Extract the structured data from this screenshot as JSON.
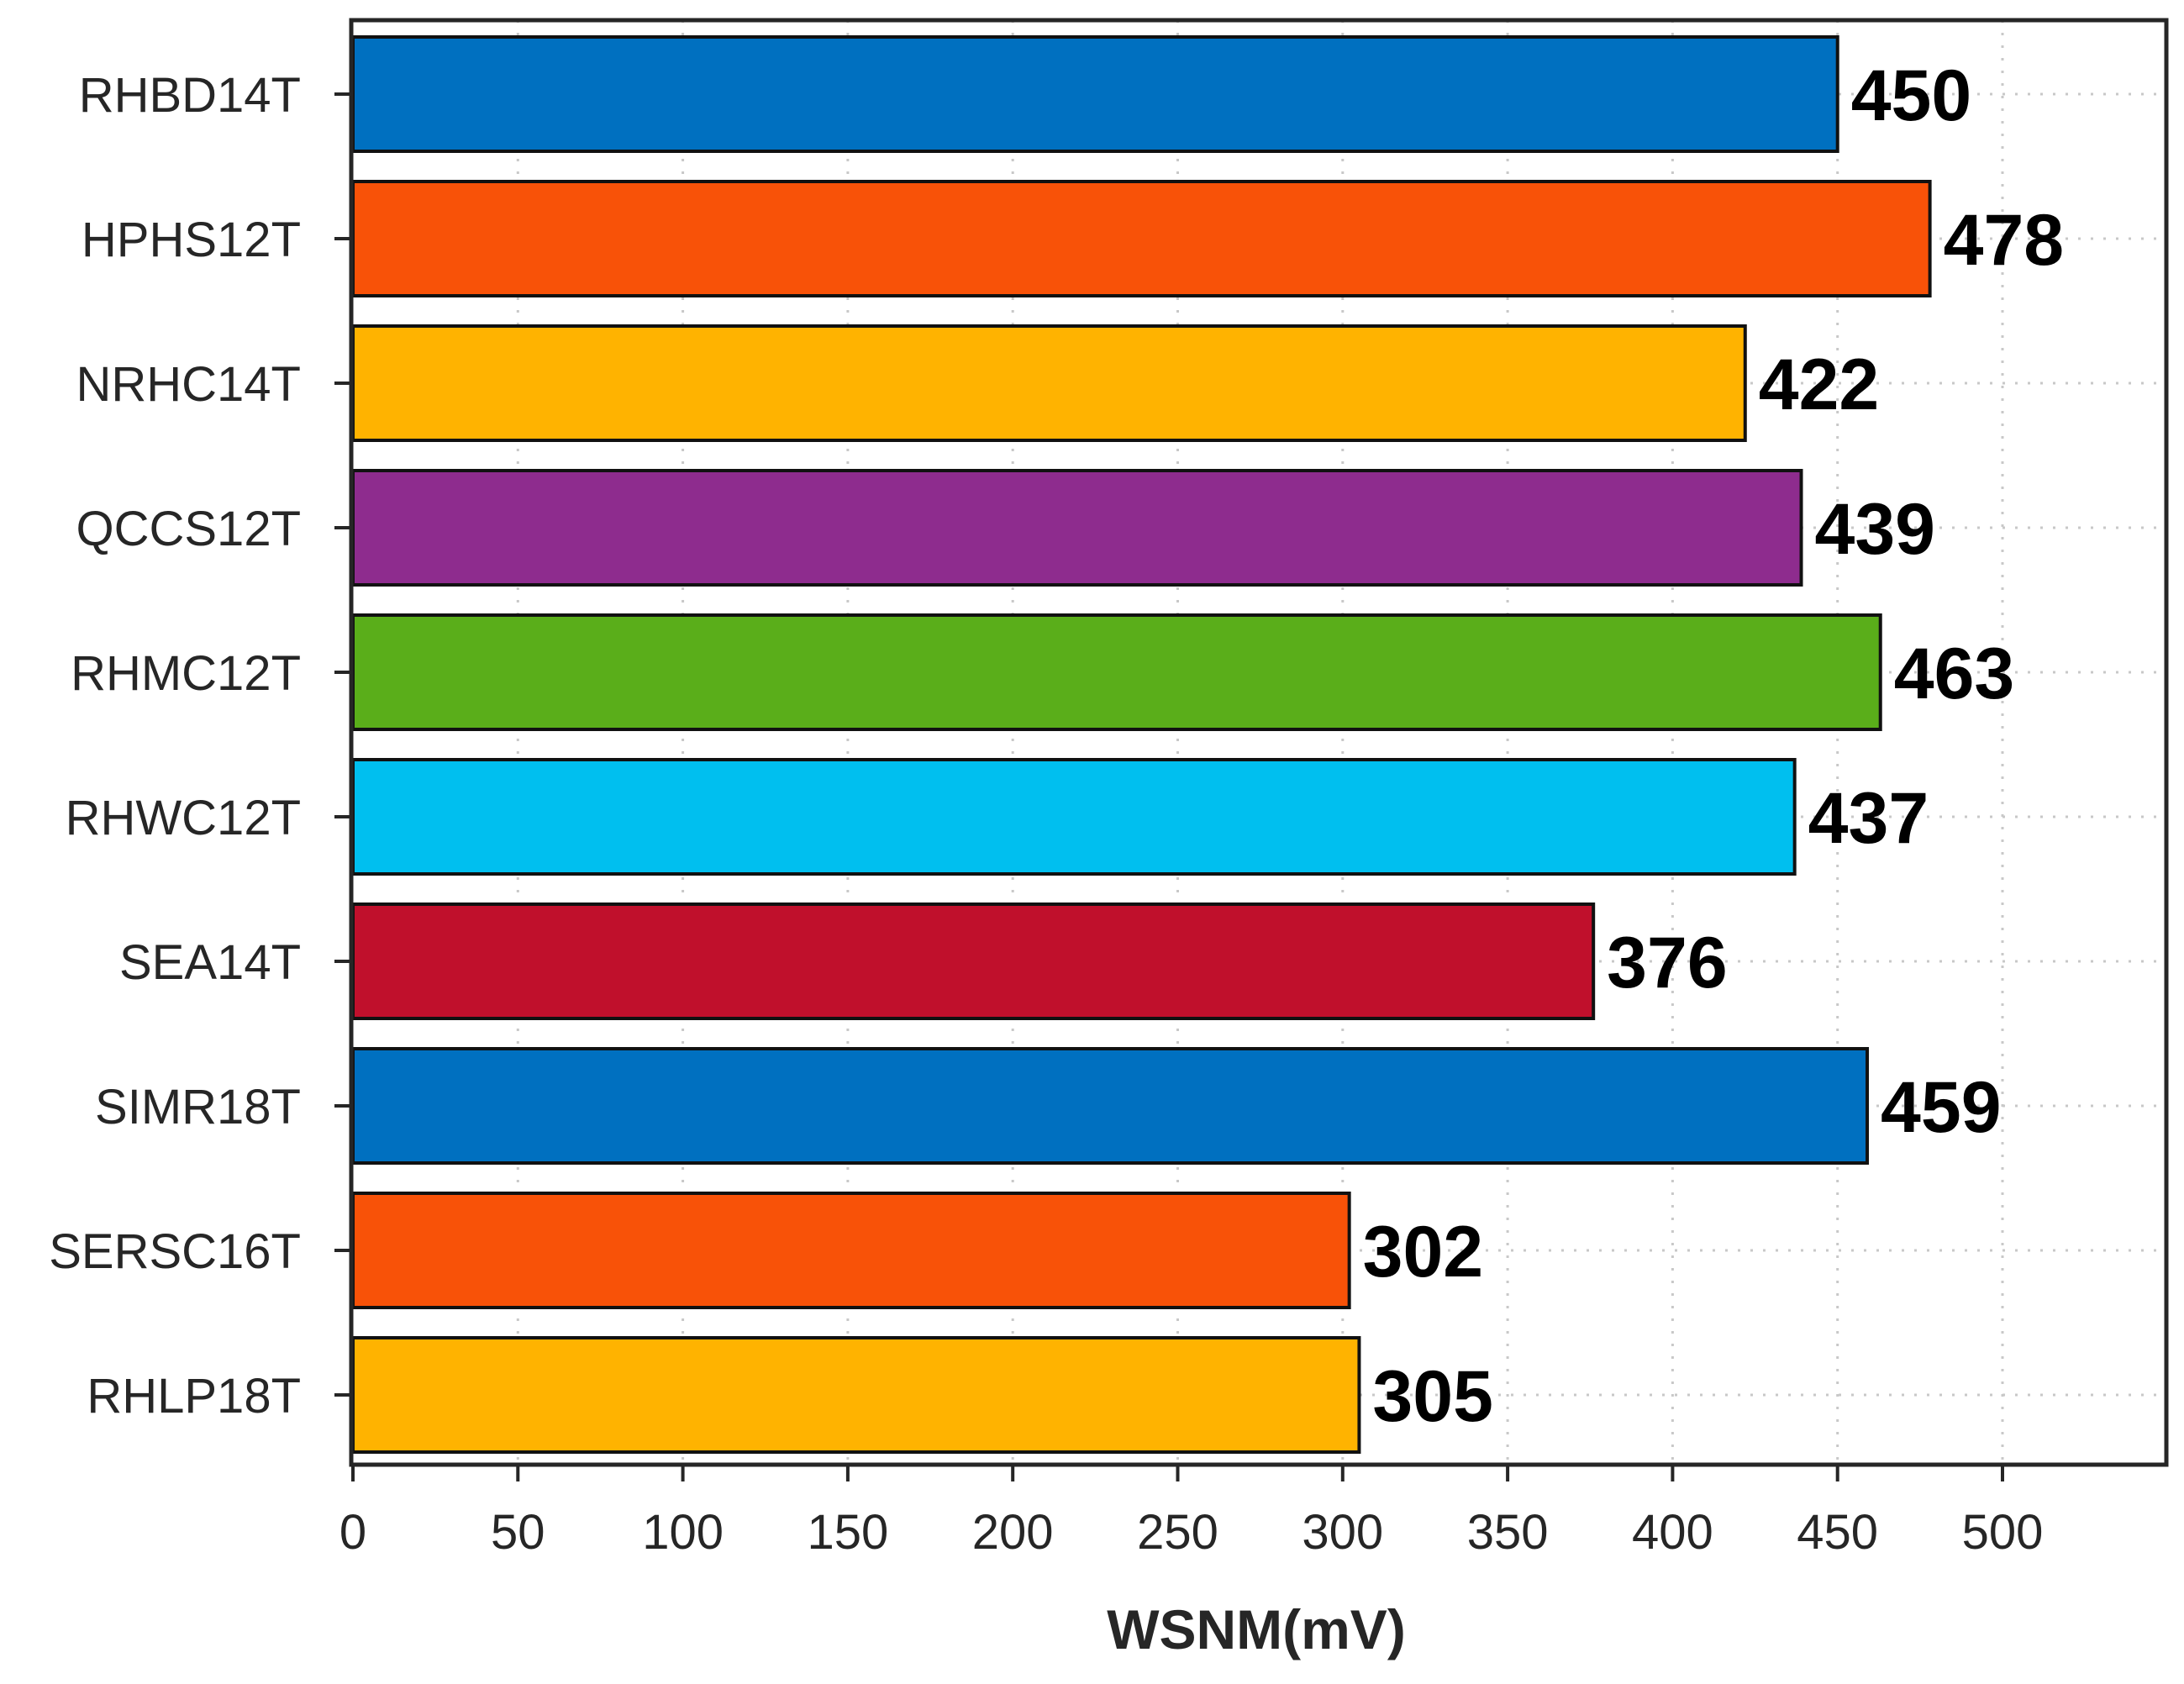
{
  "chart_data": {
    "type": "bar",
    "orientation": "horizontal",
    "title": "",
    "xlabel": "WSNM(mV)",
    "ylabel": "",
    "categories": [
      "RHBD14T",
      "HPHS12T",
      "NRHC14T",
      "QCCS12T",
      "RHMC12T",
      "RHWC12T",
      "SEA14T",
      "SIMR18T",
      "SERSC16T",
      "RHLP18T"
    ],
    "values": [
      450,
      478,
      422,
      439,
      463,
      437,
      376,
      459,
      302,
      305
    ],
    "value_labels": [
      "450",
      "478",
      "422",
      "439",
      "463",
      "437",
      "376",
      "459",
      "302",
      "305"
    ],
    "colors": [
      "#0070C0",
      "#F85208",
      "#FFB300",
      "#8E2C8E",
      "#5AAE1A",
      "#00BFEF",
      "#C0102C",
      "#0070C0",
      "#F85208",
      "#FFB300"
    ],
    "xlim": [
      0,
      550
    ],
    "xticks": [
      0,
      50,
      100,
      150,
      200,
      250,
      300,
      350,
      400,
      450,
      500
    ],
    "xtick_labels": [
      "0",
      "50",
      "100",
      "150",
      "200",
      "250",
      "300",
      "350",
      "400",
      "450",
      "500"
    ],
    "grid": true,
    "legend": "none"
  }
}
